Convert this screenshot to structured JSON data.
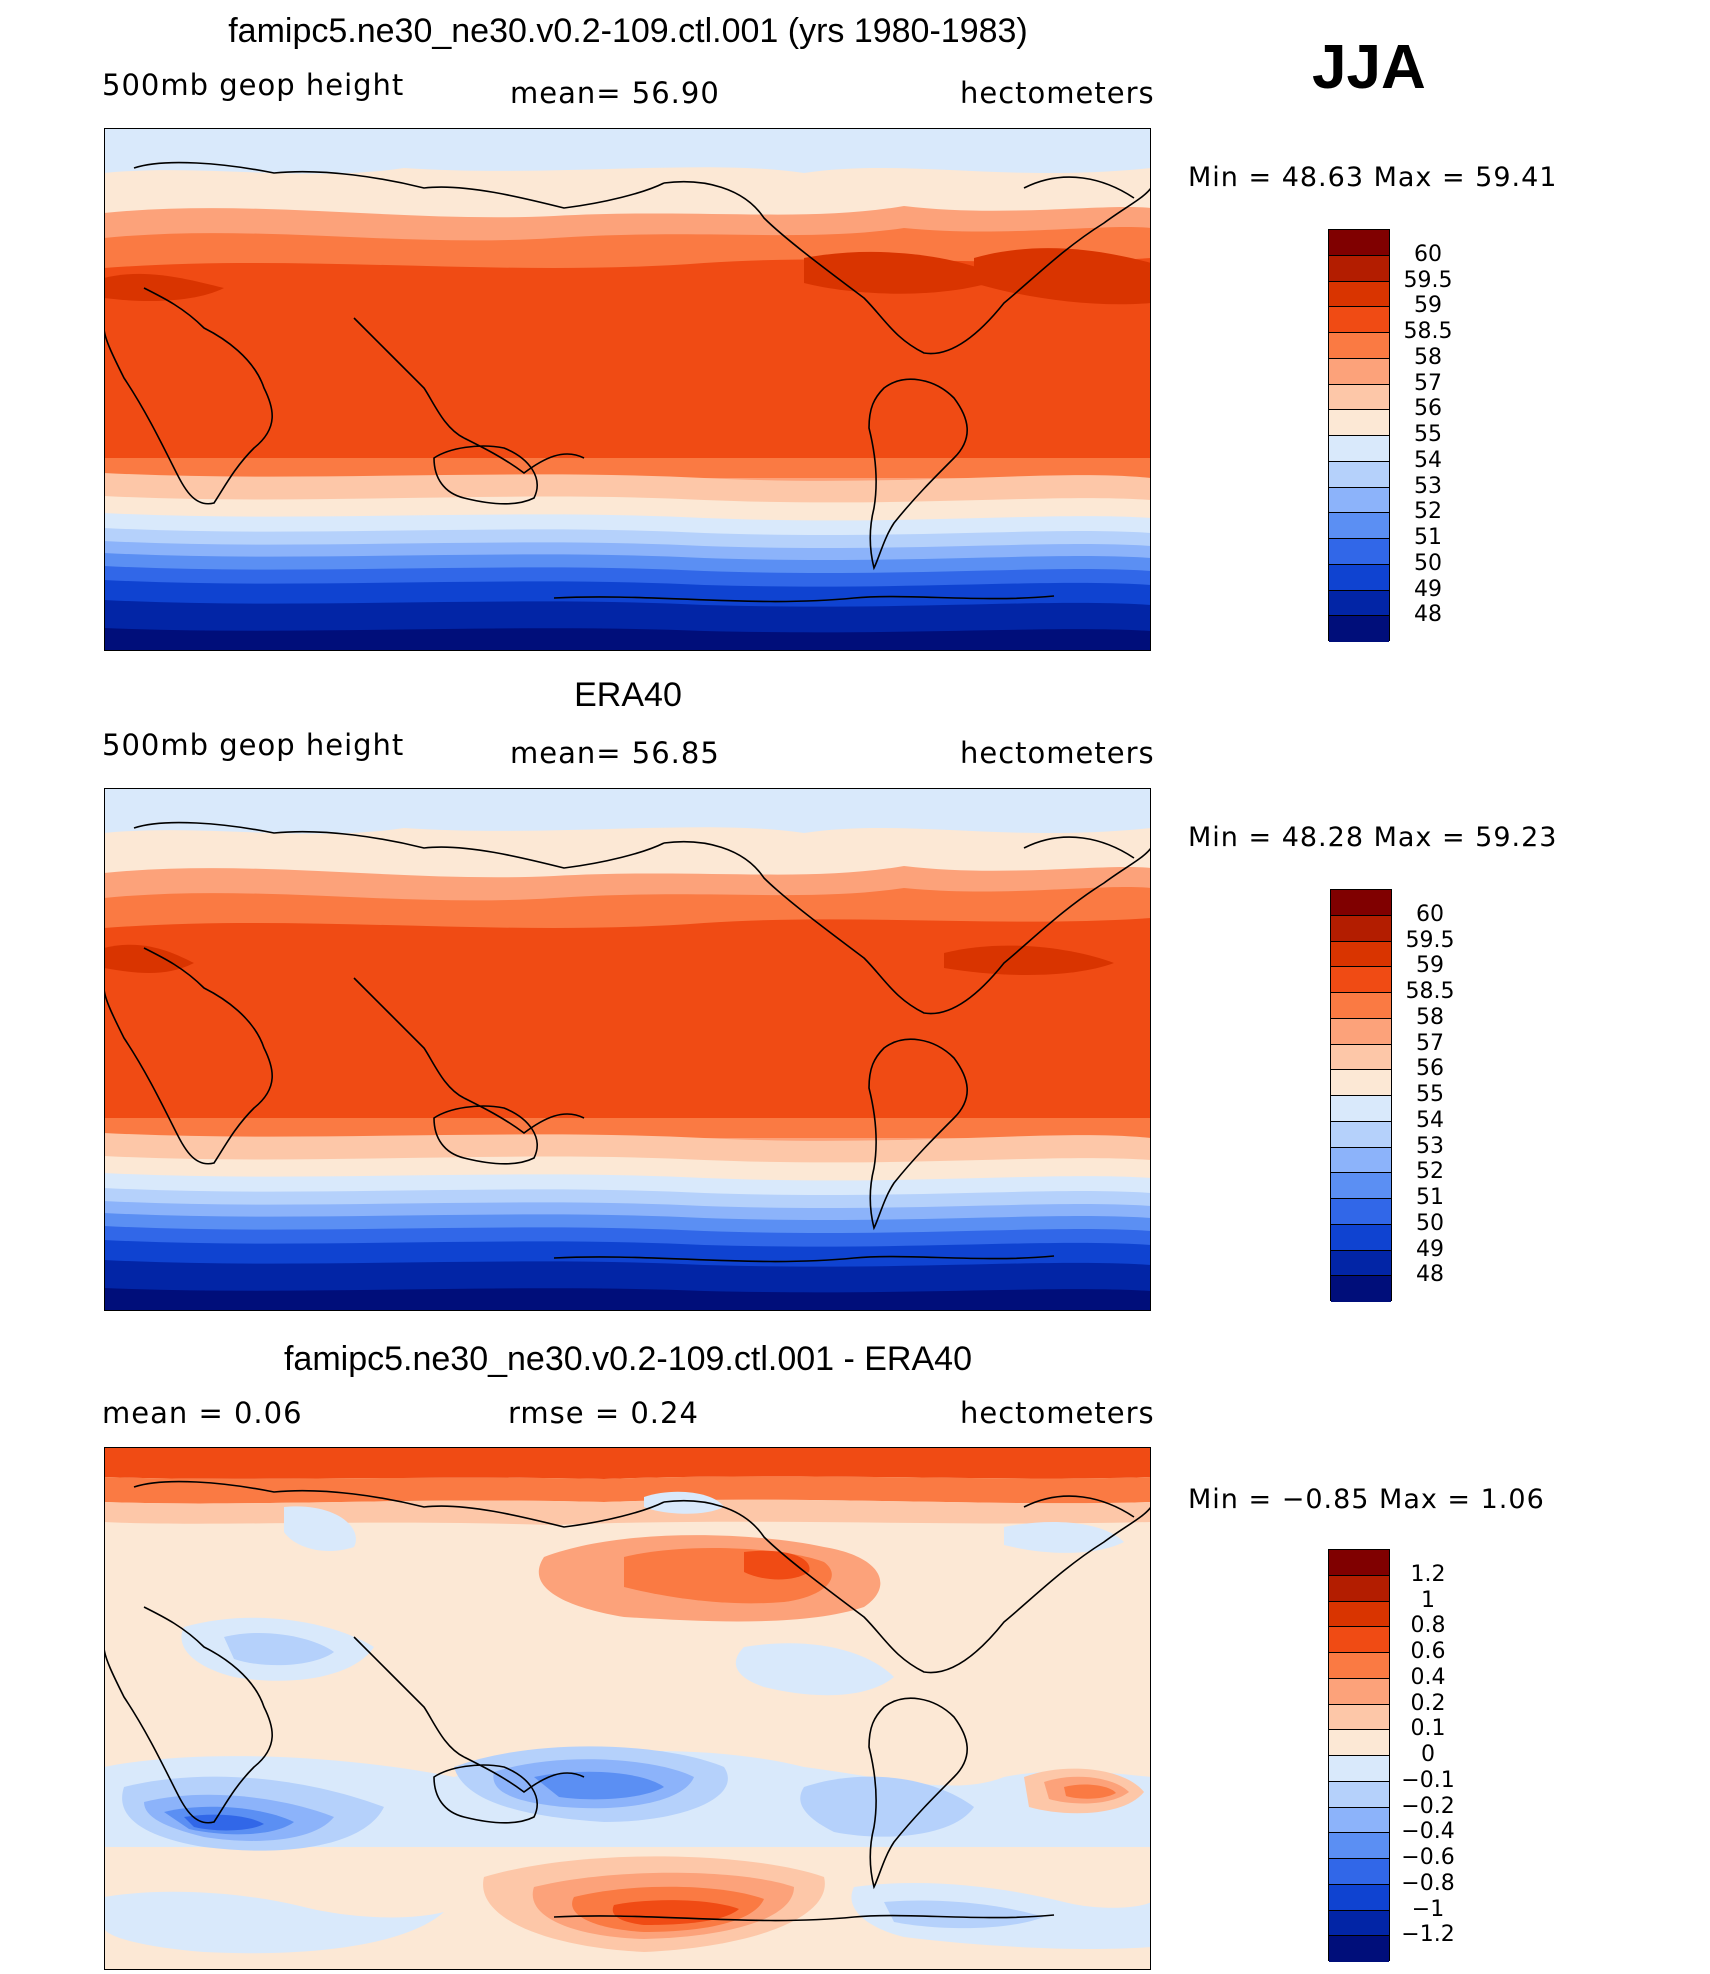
{
  "season": "JJA",
  "colors": {
    "sequential": [
      "#800000",
      "#b31d00",
      "#d93400",
      "#f04b14",
      "#fa7a43",
      "#fca27a",
      "#fdc7a8",
      "#fce8d5",
      "#d9e9fb",
      "#b5d1fb",
      "#8cb3fa",
      "#5b8ff3",
      "#3167e8",
      "#0f43d1",
      "#0225a6",
      "#000e7a"
    ],
    "diff": [
      "#800000",
      "#b31d00",
      "#d93400",
      "#f04b14",
      "#fa7a43",
      "#fca27a",
      "#fdc7a8",
      "#fce8d5",
      "#d9e9fb",
      "#b5d1fb",
      "#8cb3fa",
      "#5b8ff3",
      "#3167e8",
      "#0f43d1",
      "#0225a6",
      "#000e7a"
    ]
  },
  "panels": [
    {
      "title": "famipc5.ne30_ne30.v0.2-109.ctl.001 (yrs 1980-1983)",
      "left": "500mb geop height",
      "center": "mean=   56.90",
      "right": "hectometers",
      "minmax": "Min =   48.63  Max =   59.41",
      "colorbar_labels": [
        "60",
        "59.5",
        "59",
        "58.5",
        "58",
        "57",
        "56",
        "55",
        "54",
        "53",
        "52",
        "51",
        "50",
        "49",
        "48"
      ]
    },
    {
      "title": "ERA40",
      "left": "500mb geop height",
      "center": "mean=   56.85",
      "right": "hectometers",
      "minmax": "Min =   48.28  Max =   59.23",
      "colorbar_labels": [
        "60",
        "59.5",
        "59",
        "58.5",
        "58",
        "57",
        "56",
        "55",
        "54",
        "53",
        "52",
        "51",
        "50",
        "49",
        "48"
      ]
    },
    {
      "title": "famipc5.ne30_ne30.v0.2-109.ctl.001 - ERA40",
      "left": "mean =     0.06",
      "center": "rmse =     0.24",
      "right": "hectometers",
      "minmax": "Min =   −0.85  Max =      1.06",
      "colorbar_labels": [
        "1.2",
        "1",
        "0.8",
        "0.6",
        "0.4",
        "0.2",
        "0.1",
        "0",
        "−0.1",
        "−0.2",
        "−0.4",
        "−0.6",
        "−0.8",
        "−1",
        "−1.2"
      ]
    }
  ]
}
